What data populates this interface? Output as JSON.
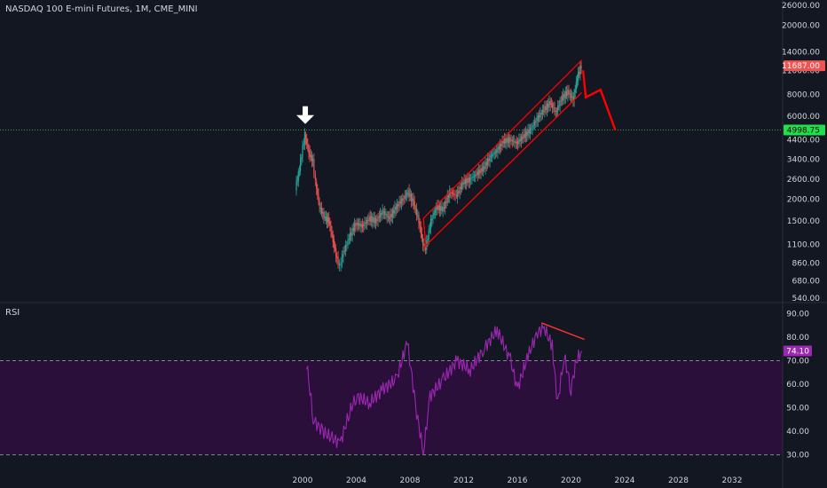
{
  "chart_title": "NASDAQ 100 E-mini Futures, 1M, CME_MINI",
  "rsi_title": "RSI",
  "colors": {
    "background": "#131722",
    "candle_up": "#26a69a",
    "candle_down": "#ef5350",
    "channel": "#ff0000",
    "projection": "#ff0000",
    "current_price_bg": "#f05350",
    "support_line": "#4caf50",
    "support_tag_bg": "#1fe04a",
    "rsi_line": "#9c27b0",
    "rsi_band": "#2a0f3a",
    "axis_text": "#d1d4dc",
    "divergence_line": "#ff3333"
  },
  "chart_data": [
    {
      "type": "candlestick",
      "title": "NASDAQ 100 E-mini Futures, 1M, CME_MINI",
      "y_scale": "log",
      "y_ticks": [
        "26000.00",
        "20000.00",
        "14000.00",
        "11000.00",
        "8000.00",
        "6000.00",
        "4400.00",
        "3400.00",
        "2600.00",
        "2000.00",
        "1500.00",
        "1100.00",
        "860.00",
        "680.00",
        "540.00"
      ],
      "x_ticks": [
        "2000",
        "2004",
        "2008",
        "2012",
        "2016",
        "2020",
        "2024",
        "2028",
        "2032"
      ],
      "price_tags": [
        {
          "label": "11687.00",
          "value": 11687
        },
        {
          "label": "4998.75",
          "value": 4998.75
        }
      ],
      "series": [
        {
          "x": 1999.5,
          "y": 2300
        },
        {
          "x": 1999.8,
          "y": 3000
        },
        {
          "x": 2000.2,
          "y": 4700
        },
        {
          "x": 2000.5,
          "y": 3700
        },
        {
          "x": 2000.8,
          "y": 3300
        },
        {
          "x": 2001.0,
          "y": 2500
        },
        {
          "x": 2001.3,
          "y": 1800
        },
        {
          "x": 2001.7,
          "y": 1550
        },
        {
          "x": 2002.0,
          "y": 1500
        },
        {
          "x": 2002.3,
          "y": 1150
        },
        {
          "x": 2002.6,
          "y": 900
        },
        {
          "x": 2002.8,
          "y": 820
        },
        {
          "x": 2003.0,
          "y": 950
        },
        {
          "x": 2003.5,
          "y": 1200
        },
        {
          "x": 2004.0,
          "y": 1450
        },
        {
          "x": 2004.5,
          "y": 1400
        },
        {
          "x": 2005.0,
          "y": 1550
        },
        {
          "x": 2005.5,
          "y": 1500
        },
        {
          "x": 2006.0,
          "y": 1700
        },
        {
          "x": 2006.5,
          "y": 1550
        },
        {
          "x": 2007.0,
          "y": 1800
        },
        {
          "x": 2007.5,
          "y": 2000
        },
        {
          "x": 2007.9,
          "y": 2200
        },
        {
          "x": 2008.3,
          "y": 1900
        },
        {
          "x": 2008.7,
          "y": 1500
        },
        {
          "x": 2009.0,
          "y": 1100
        },
        {
          "x": 2009.2,
          "y": 1050
        },
        {
          "x": 2009.6,
          "y": 1500
        },
        {
          "x": 2010.0,
          "y": 1800
        },
        {
          "x": 2010.5,
          "y": 1750
        },
        {
          "x": 2011.0,
          "y": 2200
        },
        {
          "x": 2011.5,
          "y": 2100
        },
        {
          "x": 2012.0,
          "y": 2500
        },
        {
          "x": 2012.5,
          "y": 2600
        },
        {
          "x": 2013.0,
          "y": 2800
        },
        {
          "x": 2013.5,
          "y": 3000
        },
        {
          "x": 2014.0,
          "y": 3500
        },
        {
          "x": 2014.5,
          "y": 3800
        },
        {
          "x": 2015.0,
          "y": 4300
        },
        {
          "x": 2015.5,
          "y": 4400
        },
        {
          "x": 2016.0,
          "y": 4200
        },
        {
          "x": 2016.5,
          "y": 4600
        },
        {
          "x": 2017.0,
          "y": 5000
        },
        {
          "x": 2017.5,
          "y": 5800
        },
        {
          "x": 2018.0,
          "y": 6500
        },
        {
          "x": 2018.5,
          "y": 7200
        },
        {
          "x": 2018.9,
          "y": 6300
        },
        {
          "x": 2019.3,
          "y": 7500
        },
        {
          "x": 2019.8,
          "y": 8300
        },
        {
          "x": 2020.2,
          "y": 7500
        },
        {
          "x": 2020.5,
          "y": 10000
        },
        {
          "x": 2020.8,
          "y": 11687
        }
      ],
      "channel": {
        "upper": [
          {
            "x": 2009.0,
            "y": 1550
          },
          {
            "x": 2020.8,
            "y": 12600
          }
        ],
        "lower": [
          {
            "x": 2009.0,
            "y": 1050
          },
          {
            "x": 2020.8,
            "y": 8200
          }
        ],
        "upper_left_end": [
          {
            "x": 2009.0,
            "y": 1550
          },
          {
            "x": 2009.2,
            "y": 1050
          }
        ]
      },
      "projection": [
        {
          "x": 2020.9,
          "y": 11000
        },
        {
          "x": 2021.1,
          "y": 7700
        },
        {
          "x": 2022.2,
          "y": 8500
        },
        {
          "x": 2023.3,
          "y": 4998.75
        }
      ]
    },
    {
      "type": "line",
      "title": "RSI",
      "y_ticks": [
        "90.00",
        "80.00",
        "74.10",
        "70.00",
        "60.00",
        "50.00",
        "40.00",
        "30.00"
      ],
      "ylim": [
        28,
        92
      ],
      "band": [
        30,
        70
      ],
      "current": {
        "label": "74.10",
        "value": 74.1
      },
      "series": [
        {
          "x": 2000.3,
          "y": 69
        },
        {
          "x": 2000.8,
          "y": 45
        },
        {
          "x": 2001.5,
          "y": 40
        },
        {
          "x": 2002.2,
          "y": 37
        },
        {
          "x": 2002.8,
          "y": 35
        },
        {
          "x": 2003.5,
          "y": 48
        },
        {
          "x": 2004.0,
          "y": 55
        },
        {
          "x": 2005.0,
          "y": 52
        },
        {
          "x": 2006.0,
          "y": 58
        },
        {
          "x": 2007.0,
          "y": 62
        },
        {
          "x": 2007.8,
          "y": 78
        },
        {
          "x": 2008.5,
          "y": 48
        },
        {
          "x": 2009.0,
          "y": 31
        },
        {
          "x": 2009.5,
          "y": 55
        },
        {
          "x": 2010.5,
          "y": 62
        },
        {
          "x": 2011.5,
          "y": 70
        },
        {
          "x": 2012.5,
          "y": 66
        },
        {
          "x": 2013.5,
          "y": 75
        },
        {
          "x": 2014.5,
          "y": 83
        },
        {
          "x": 2015.5,
          "y": 70
        },
        {
          "x": 2016.0,
          "y": 58
        },
        {
          "x": 2016.8,
          "y": 72
        },
        {
          "x": 2017.5,
          "y": 82
        },
        {
          "x": 2018.0,
          "y": 84
        },
        {
          "x": 2018.6,
          "y": 76
        },
        {
          "x": 2019.0,
          "y": 52
        },
        {
          "x": 2019.5,
          "y": 72
        },
        {
          "x": 2020.0,
          "y": 58
        },
        {
          "x": 2020.4,
          "y": 70
        },
        {
          "x": 2020.8,
          "y": 74.1
        }
      ],
      "divergence": [
        {
          "x": 2017.8,
          "y": 86
        },
        {
          "x": 2021.0,
          "y": 79
        }
      ]
    }
  ]
}
